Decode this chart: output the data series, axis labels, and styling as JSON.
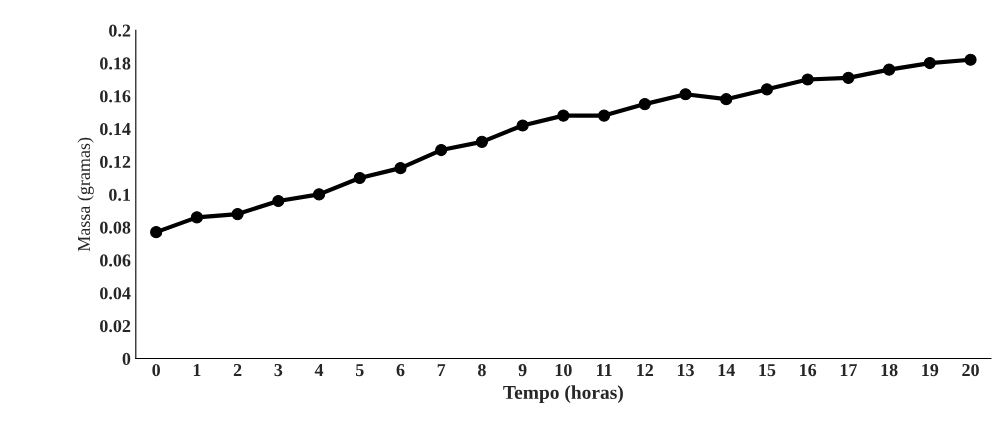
{
  "chart_data": {
    "type": "line",
    "xlabel": "Tempo (horas)",
    "ylabel": "Massa (gramas)",
    "categories": [
      "0",
      "1",
      "2",
      "3",
      "4",
      "5",
      "6",
      "7",
      "8",
      "9",
      "10",
      "11",
      "12",
      "13",
      "14",
      "15",
      "16",
      "17",
      "18",
      "19",
      "20"
    ],
    "series": [
      {
        "color": "#000000",
        "values": [
          0.077,
          0.086,
          0.088,
          0.096,
          0.1,
          0.11,
          0.116,
          0.127,
          0.132,
          0.142,
          0.148,
          0.148,
          0.155,
          0.161,
          0.158,
          0.164,
          0.17,
          0.171,
          0.176,
          0.18,
          0.182
        ]
      }
    ],
    "ylim": [
      0,
      0.2
    ],
    "yticks": [
      0,
      0.02,
      0.04,
      0.06,
      0.08,
      0.1,
      0.12,
      0.14,
      0.16,
      0.18,
      0.2
    ],
    "grid": false,
    "legend": false,
    "marker": "circle",
    "line_style": "solid"
  }
}
